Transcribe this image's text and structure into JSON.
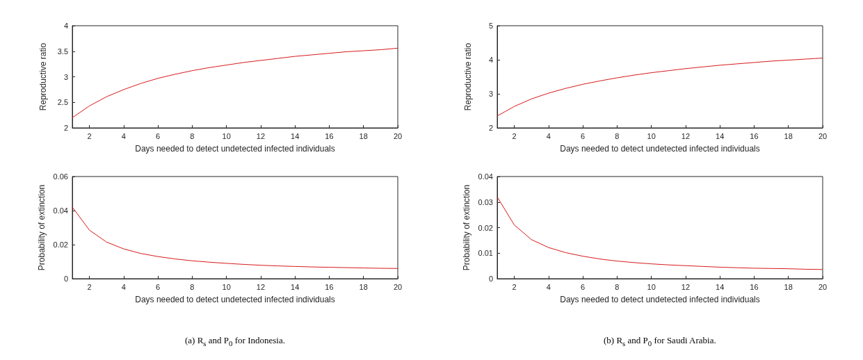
{
  "chart_data": [
    {
      "type": "line",
      "xlabel": "Days needed to detect undetected infected individuals",
      "ylabel": "Reproductive ratio",
      "color": "#d7191c",
      "x": [
        1,
        2,
        3,
        4,
        5,
        6,
        7,
        8,
        9,
        10,
        11,
        12,
        13,
        14,
        15,
        16,
        17,
        18,
        19,
        20
      ],
      "values": [
        2.2,
        2.43,
        2.61,
        2.75,
        2.87,
        2.97,
        3.05,
        3.12,
        3.18,
        3.23,
        3.28,
        3.32,
        3.36,
        3.4,
        3.43,
        3.46,
        3.49,
        3.51,
        3.53,
        3.56
      ],
      "xlim": [
        1,
        20
      ],
      "xticks": [
        2,
        4,
        6,
        8,
        10,
        12,
        14,
        16,
        18,
        20
      ],
      "ylim": [
        2,
        4
      ],
      "yticks": [
        2,
        2.5,
        3,
        3.5,
        4
      ]
    },
    {
      "type": "line",
      "xlabel": "Days needed to detect undetected infected individuals",
      "ylabel": "Reproductive ratio",
      "color": "#d7191c",
      "x": [
        1,
        2,
        3,
        4,
        5,
        6,
        7,
        8,
        9,
        10,
        11,
        12,
        13,
        14,
        15,
        16,
        17,
        18,
        19,
        20
      ],
      "values": [
        2.35,
        2.63,
        2.85,
        3.02,
        3.16,
        3.28,
        3.38,
        3.47,
        3.55,
        3.62,
        3.68,
        3.74,
        3.79,
        3.84,
        3.88,
        3.92,
        3.96,
        3.99,
        4.02,
        4.05
      ],
      "xlim": [
        1,
        20
      ],
      "xticks": [
        2,
        4,
        6,
        8,
        10,
        12,
        14,
        16,
        18,
        20
      ],
      "ylim": [
        2,
        5
      ],
      "yticks": [
        2,
        3,
        4,
        5
      ]
    },
    {
      "type": "line",
      "xlabel": "Days needed to detect undetected infected individuals",
      "ylabel": "Probability of extinction",
      "color": "#d7191c",
      "x": [
        1,
        2,
        3,
        4,
        5,
        6,
        7,
        8,
        9,
        10,
        11,
        12,
        13,
        14,
        15,
        16,
        17,
        18,
        19,
        20
      ],
      "values": [
        0.042,
        0.0285,
        0.0215,
        0.0175,
        0.0148,
        0.013,
        0.0116,
        0.0105,
        0.0097,
        0.009,
        0.0084,
        0.0079,
        0.0075,
        0.0072,
        0.0069,
        0.0067,
        0.0065,
        0.0063,
        0.0061,
        0.006
      ],
      "xlim": [
        1,
        20
      ],
      "xticks": [
        2,
        4,
        6,
        8,
        10,
        12,
        14,
        16,
        18,
        20
      ],
      "ylim": [
        0,
        0.06
      ],
      "yticks": [
        0,
        0.02,
        0.04,
        0.06
      ],
      "annotations": [
        "(a) R$_{s}$ and P$_{0}$ for Indonesia."
      ]
    },
    {
      "type": "line",
      "xlabel": "Days needed to detect undetected infected individuals",
      "ylabel": "Probability of extinction",
      "color": "#d7191c",
      "x": [
        1,
        2,
        3,
        4,
        5,
        6,
        7,
        8,
        9,
        10,
        11,
        12,
        13,
        14,
        15,
        16,
        17,
        18,
        19,
        20
      ],
      "values": [
        0.032,
        0.021,
        0.0153,
        0.0122,
        0.0102,
        0.0088,
        0.0077,
        0.0069,
        0.0063,
        0.0058,
        0.0054,
        0.0051,
        0.0048,
        0.0045,
        0.0043,
        0.0041,
        0.004,
        0.0039,
        0.0037,
        0.0036
      ],
      "xlim": [
        1,
        20
      ],
      "xticks": [
        2,
        4,
        6,
        8,
        10,
        12,
        14,
        16,
        18,
        20
      ],
      "ylim": [
        0,
        0.04
      ],
      "yticks": [
        0,
        0.01,
        0.02,
        0.03,
        0.04
      ],
      "annotations": [
        "(b) R$_{s}$ and P$_{0}$ for Saudi Arabia."
      ]
    }
  ]
}
